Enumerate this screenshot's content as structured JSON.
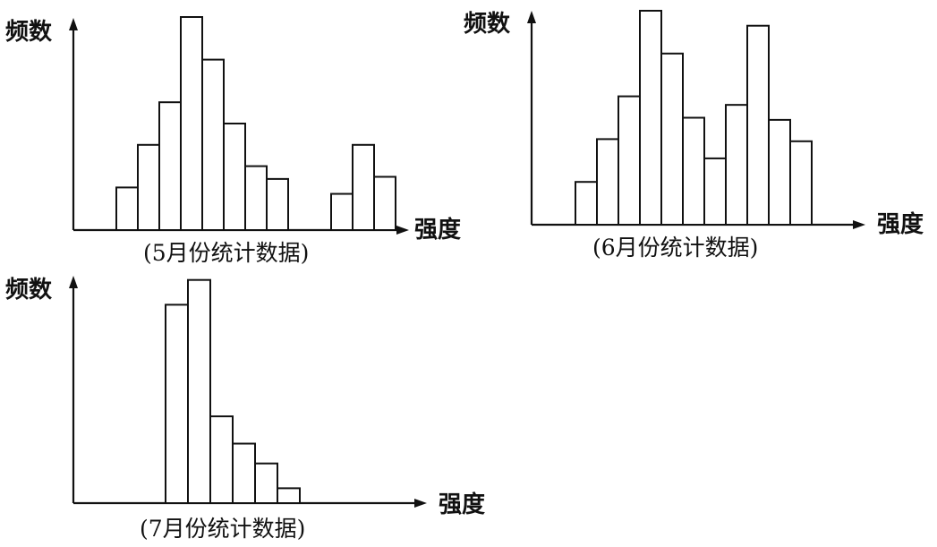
{
  "chart_data": [
    {
      "type": "bar",
      "title": "(5月份统计数据)",
      "xlabel": "强度",
      "ylabel": "频数",
      "groups": [
        {
          "values": [
            2,
            4,
            6,
            10,
            8,
            5,
            3,
            2.4
          ]
        },
        {
          "values": [
            1.7,
            4,
            2.5
          ]
        }
      ]
    },
    {
      "type": "bar",
      "title": "(6月份统计数据)",
      "xlabel": "强度",
      "ylabel": "频数",
      "groups": [
        {
          "values": [
            2,
            4,
            6,
            10,
            8,
            5,
            3.1,
            5.6,
            9.3,
            4.9,
            3.9
          ]
        }
      ]
    },
    {
      "type": "bar",
      "title": "(7月份统计数据)",
      "xlabel": "强度",
      "ylabel": "频数",
      "groups": [
        {
          "values": [
            8,
            9,
            3.5,
            2.4,
            1.6,
            0.6
          ]
        }
      ]
    }
  ]
}
